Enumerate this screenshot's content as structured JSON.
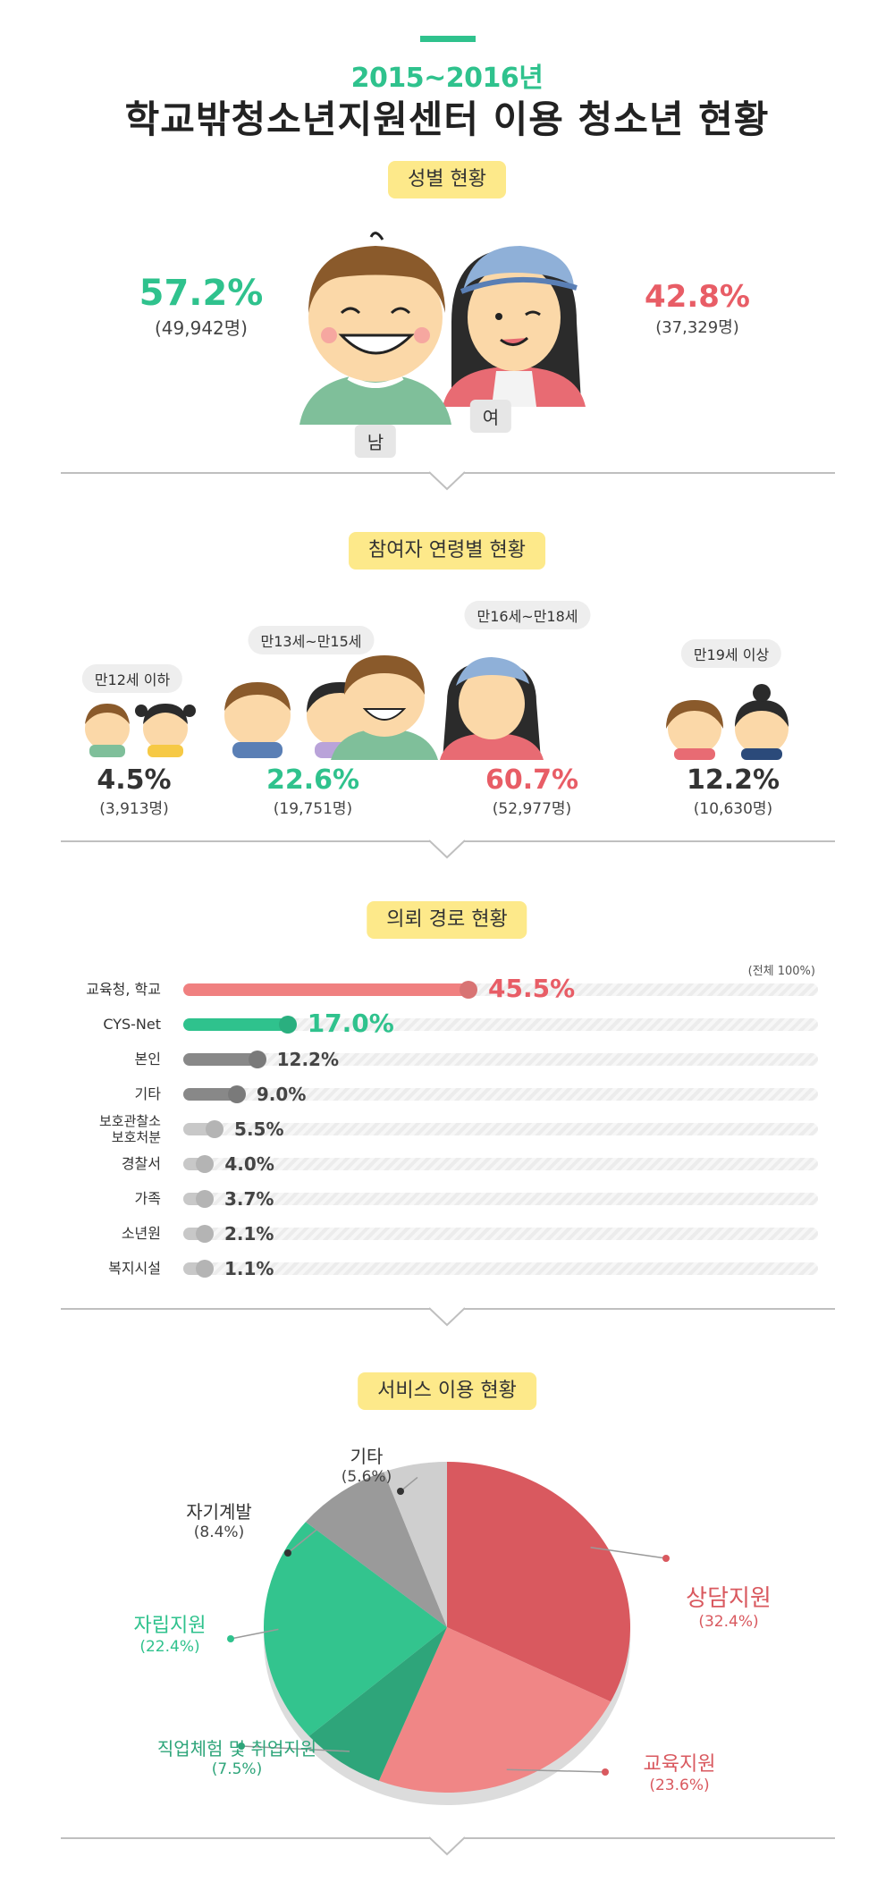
{
  "header": {
    "subtitle": "2015~2016년",
    "title": "학교밖청소년지원센터 이용 청소년 현황"
  },
  "gender": {
    "section_title": "성별 현황",
    "male": {
      "label": "남",
      "pct": "57.2%",
      "count": "(49,942명)"
    },
    "female": {
      "label": "여",
      "pct": "42.8%",
      "count": "(37,329명)"
    }
  },
  "age": {
    "section_title": "참여자 연령별 현황",
    "groups": [
      {
        "label": "만12세 이하",
        "pct": "4.5%",
        "count": "(3,913명)"
      },
      {
        "label": "만13세~만15세",
        "pct": "22.6%",
        "count": "(19,751명)"
      },
      {
        "label": "만16세~만18세",
        "pct": "60.7%",
        "count": "(52,977명)"
      },
      {
        "label": "만19세 이상",
        "pct": "12.2%",
        "count": "(10,630명)"
      }
    ]
  },
  "referral": {
    "section_title": "의뢰 경로 현황",
    "total_note": "(전체 100%)",
    "labels": [
      "교육청, 학교",
      "CYS-Net",
      "본인",
      "기타",
      "보호관찰소\n보호처분",
      "경찰서",
      "가족",
      "소년원",
      "복지시설"
    ],
    "value_text": [
      "45.5%",
      "17.0%",
      "12.2%",
      "9.0%",
      "5.5%",
      "4.0%",
      "3.7%",
      "2.1%",
      "1.1%"
    ]
  },
  "services": {
    "section_title": "서비스 이용 현황",
    "labels": [
      "상담지원",
      "교육지원",
      "직업체험 및 취업지원",
      "자립지원",
      "자기계발",
      "기타"
    ],
    "pct_text": [
      "(32.4%)",
      "(23.6%)",
      "(7.5%)",
      "(22.4%)",
      "(8.4%)",
      "(5.6%)"
    ]
  },
  "chart_data": [
    {
      "type": "bar",
      "title": "의뢰 경로 현황",
      "categories": [
        "교육청, 학교",
        "CYS-Net",
        "본인",
        "기타",
        "보호관찰소 보호처분",
        "경찰서",
        "가족",
        "소년원",
        "복지시설"
      ],
      "values": [
        45.5,
        17.0,
        12.2,
        9.0,
        5.5,
        4.0,
        3.7,
        2.1,
        1.1
      ],
      "ylim": [
        0,
        100
      ],
      "colors": [
        "#f08080",
        "#2fc28d",
        "#888888",
        "#888888",
        "#c8c8c8",
        "#c8c8c8",
        "#c8c8c8",
        "#c8c8c8",
        "#c8c8c8"
      ]
    },
    {
      "type": "pie",
      "title": "서비스 이용 현황",
      "categories": [
        "상담지원",
        "교육지원",
        "직업체험 및 취업지원",
        "자립지원",
        "자기계발",
        "기타"
      ],
      "values": [
        32.4,
        23.6,
        7.5,
        22.4,
        8.4,
        5.6
      ],
      "colors": [
        "#d9595f",
        "#f08686",
        "#2ea57a",
        "#33c48e",
        "#9a9a9a",
        "#cfcfcf"
      ]
    }
  ]
}
